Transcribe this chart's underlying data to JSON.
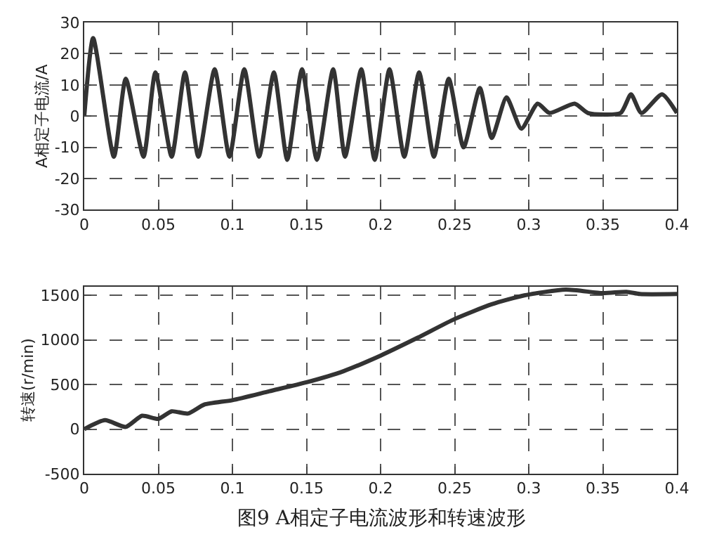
{
  "chart_data": [
    {
      "type": "line",
      "ylabel": "A相定子电流/A",
      "xlim": [
        0,
        0.4
      ],
      "ylim": [
        -30,
        30
      ],
      "xticks": [
        0,
        0.05,
        0.1,
        0.15,
        0.2,
        0.25,
        0.3,
        0.35,
        0.4
      ],
      "yticks": [
        -30,
        -20,
        -10,
        0,
        10,
        20,
        30
      ],
      "grid": true,
      "line_style": "solid",
      "series": [
        {
          "color": "#333333",
          "x": [
            0,
            0.006,
            0.02,
            0.028,
            0.04,
            0.048,
            0.059,
            0.068,
            0.077,
            0.088,
            0.098,
            0.108,
            0.118,
            0.128,
            0.137,
            0.147,
            0.157,
            0.168,
            0.176,
            0.187,
            0.196,
            0.206,
            0.216,
            0.226,
            0.236,
            0.246,
            0.256,
            0.267,
            0.275,
            0.285,
            0.295,
            0.306,
            0.314,
            0.331,
            0.34,
            0.362,
            0.369,
            0.376,
            0.39,
            0.4
          ],
          "values": [
            0,
            25,
            -13,
            12,
            -13,
            14,
            -13,
            14,
            -13,
            15,
            -13,
            15,
            -13,
            14,
            -14,
            15,
            -14,
            15,
            -13,
            15,
            -14,
            15,
            -13,
            14,
            -13,
            12,
            -10,
            9,
            -7,
            6,
            -4,
            4,
            1,
            4,
            1,
            1,
            7,
            1,
            7,
            1
          ]
        }
      ]
    },
    {
      "type": "line",
      "ylabel": "转速(r/min)",
      "xlim": [
        0,
        0.4
      ],
      "ylim": [
        -500,
        1600
      ],
      "xticks": [
        0,
        0.05,
        0.1,
        0.15,
        0.2,
        0.25,
        0.3,
        0.35,
        0.4
      ],
      "yticks": [
        -500,
        0,
        500,
        1000,
        1500
      ],
      "grid": true,
      "line_style": "solid",
      "annotations": [
        "图9 A相定子电流波形和转速波形"
      ],
      "series": [
        {
          "color": "#333333",
          "x": [
            0,
            0.014,
            0.028,
            0.039,
            0.05,
            0.059,
            0.07,
            0.081,
            0.1,
            0.125,
            0.15,
            0.175,
            0.2,
            0.225,
            0.25,
            0.275,
            0.297,
            0.325,
            0.35,
            0.366,
            0.375,
            0.4
          ],
          "values": [
            0,
            100,
            25,
            150,
            115,
            200,
            175,
            275,
            325,
            425,
            525,
            650,
            825,
            1025,
            1235,
            1400,
            1500,
            1565,
            1525,
            1540,
            1515,
            1515
          ]
        }
      ]
    }
  ]
}
